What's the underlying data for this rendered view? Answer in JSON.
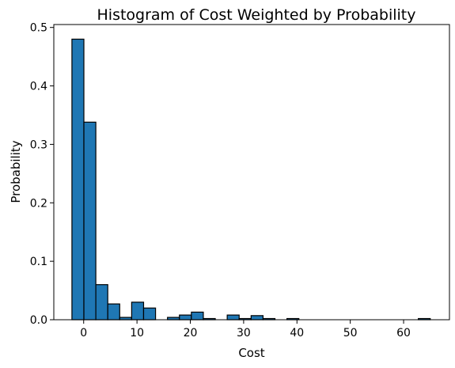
{
  "chart_data": {
    "type": "bar",
    "title": "Histogram of Cost Weighted by Probability",
    "xlabel": "Cost",
    "ylabel": "Probability",
    "xlim": [
      -5.6,
      68.6
    ],
    "ylim": [
      0,
      0.505
    ],
    "xticks": [
      0,
      10,
      20,
      30,
      40,
      50,
      60
    ],
    "yticks": [
      0.0,
      0.1,
      0.2,
      0.3,
      0.4,
      0.5
    ],
    "bar_color": "#1f77b4",
    "bin_width": 2.24,
    "bins": [
      {
        "x0": -2.2,
        "value": 0.48
      },
      {
        "x0": 0.04,
        "value": 0.338
      },
      {
        "x0": 2.28,
        "value": 0.06
      },
      {
        "x0": 4.52,
        "value": 0.027
      },
      {
        "x0": 6.76,
        "value": 0.004
      },
      {
        "x0": 9.0,
        "value": 0.03
      },
      {
        "x0": 11.24,
        "value": 0.02
      },
      {
        "x0": 13.48,
        "value": 0.0
      },
      {
        "x0": 15.72,
        "value": 0.004
      },
      {
        "x0": 17.96,
        "value": 0.008
      },
      {
        "x0": 20.2,
        "value": 0.013
      },
      {
        "x0": 22.44,
        "value": 0.002
      },
      {
        "x0": 24.68,
        "value": 0.0
      },
      {
        "x0": 26.92,
        "value": 0.008
      },
      {
        "x0": 29.16,
        "value": 0.002
      },
      {
        "x0": 31.4,
        "value": 0.007
      },
      {
        "x0": 33.64,
        "value": 0.002
      },
      {
        "x0": 35.88,
        "value": 0.0
      },
      {
        "x0": 38.12,
        "value": 0.002
      },
      {
        "x0": 40.36,
        "value": 0.0
      },
      {
        "x0": 42.6,
        "value": 0.0
      },
      {
        "x0": 44.84,
        "value": 0.0
      },
      {
        "x0": 47.08,
        "value": 0.0
      },
      {
        "x0": 49.32,
        "value": 0.0
      },
      {
        "x0": 51.56,
        "value": 0.0
      },
      {
        "x0": 53.8,
        "value": 0.0
      },
      {
        "x0": 56.04,
        "value": 0.0
      },
      {
        "x0": 58.28,
        "value": 0.0
      },
      {
        "x0": 60.52,
        "value": 0.0
      },
      {
        "x0": 62.76,
        "value": 0.002
      }
    ]
  }
}
